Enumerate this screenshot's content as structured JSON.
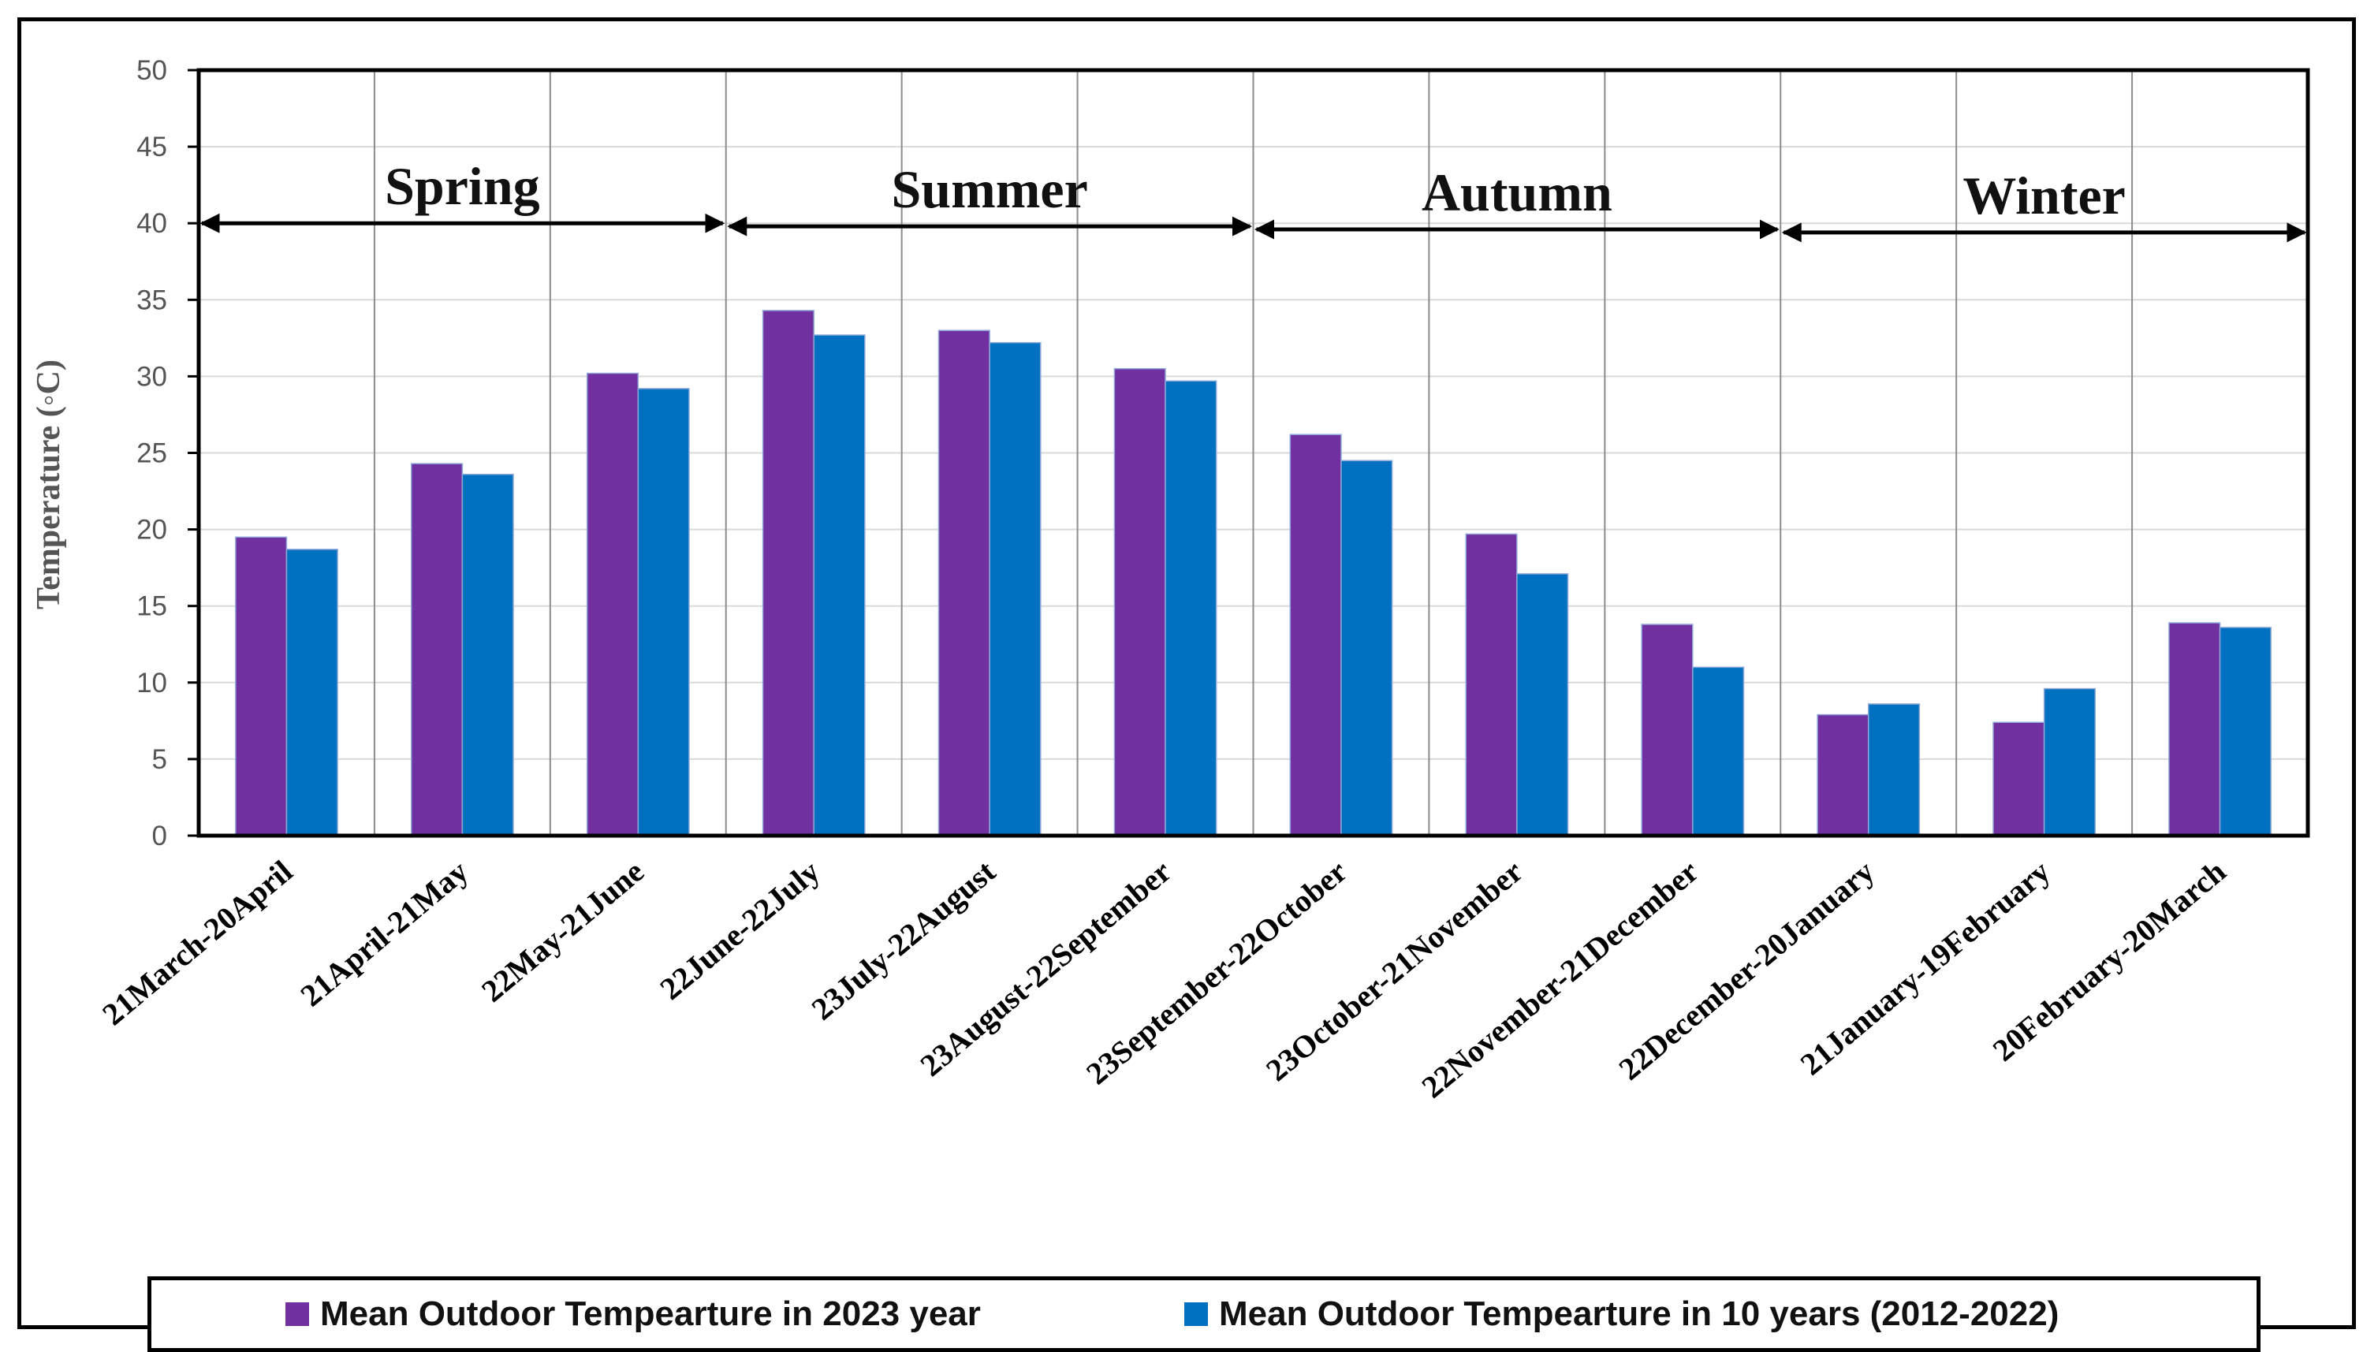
{
  "chart_data": {
    "type": "bar",
    "title": "",
    "xlabel": "",
    "ylabel": "Temperature (◦C)",
    "ylim": [
      0,
      50
    ],
    "yticks": [
      0,
      5,
      10,
      15,
      20,
      25,
      30,
      35,
      40,
      45,
      50
    ],
    "categories": [
      "21March-20April",
      "21April-21May",
      "22May-21June",
      "22June-22July",
      "23July-22August",
      "23August-22September",
      "23September-22October",
      "23October-21November",
      "22November-21December",
      "22December-20January",
      "21January-19February",
      "20February-20March"
    ],
    "series": [
      {
        "name": "Mean Outdoor Tempearture in 2023 year",
        "color": "#7030A0",
        "values": [
          19.5,
          24.3,
          30.2,
          34.3,
          33.0,
          30.5,
          26.2,
          19.7,
          13.8,
          7.9,
          7.4,
          13.9
        ]
      },
      {
        "name": "Mean Outdoor Tempearture in 10 years (2012-2022)",
        "color": "#0070C0",
        "values": [
          18.7,
          23.6,
          29.2,
          32.7,
          32.2,
          29.7,
          24.5,
          17.1,
          11.0,
          8.6,
          9.6,
          13.6
        ]
      }
    ],
    "seasons": [
      {
        "name": "Spring",
        "start_index": 0,
        "end_index": 2,
        "level": 40
      },
      {
        "name": "Summer",
        "start_index": 3,
        "end_index": 5,
        "level": 39.8
      },
      {
        "name": "Autumn",
        "start_index": 6,
        "end_index": 8,
        "level": 39.6
      },
      {
        "name": "Winter",
        "start_index": 9,
        "end_index": 11,
        "level": 39.4
      }
    ],
    "legend_position": "bottom"
  }
}
